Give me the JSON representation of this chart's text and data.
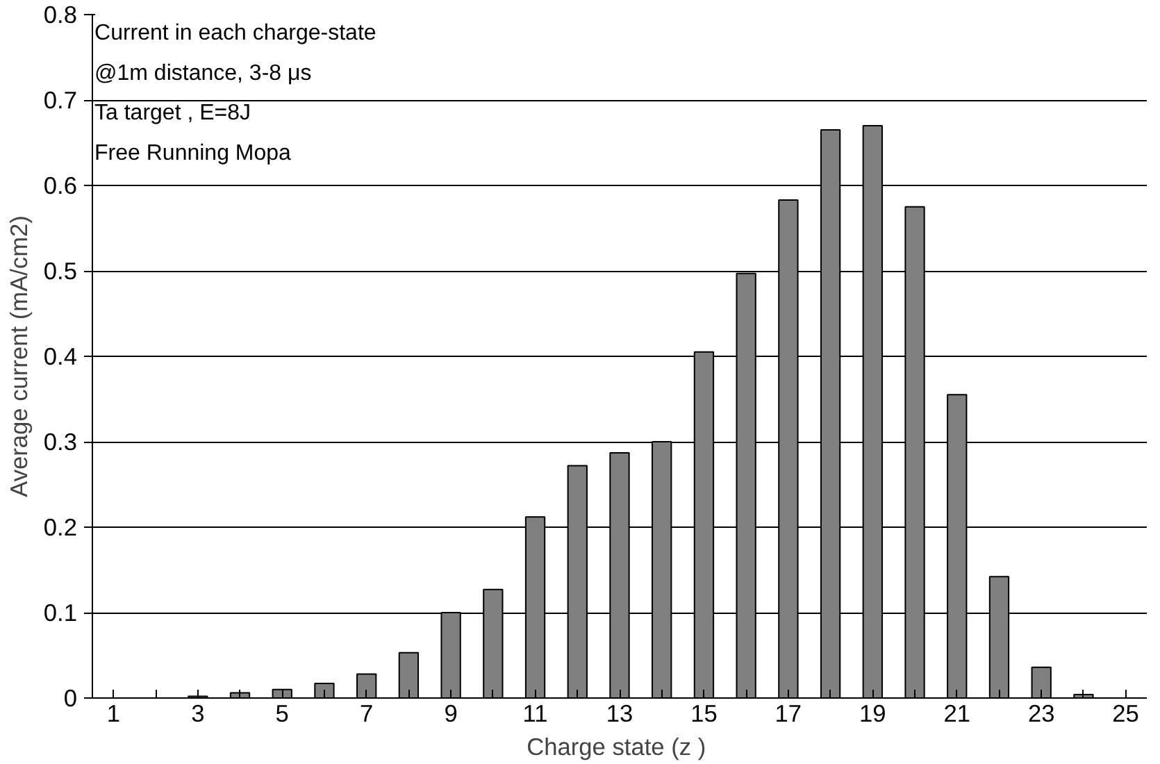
{
  "chart_data": {
    "type": "bar",
    "xlabel": "Charge state (z  )",
    "ylabel": "Average current (mA/cm2)",
    "x": [
      3,
      4,
      5,
      6,
      7,
      8,
      9,
      10,
      11,
      12,
      13,
      14,
      15,
      16,
      17,
      18,
      19,
      20,
      21,
      22,
      23,
      24
    ],
    "xlim": [
      0.5,
      25.5
    ],
    "xticks": [
      1,
      3,
      5,
      7,
      9,
      11,
      13,
      15,
      17,
      19,
      21,
      23,
      25
    ],
    "values": [
      0.002,
      0.006,
      0.01,
      0.017,
      0.028,
      0.053,
      0.1,
      0.127,
      0.212,
      0.272,
      0.287,
      0.3,
      0.405,
      0.497,
      0.583,
      0.665,
      0.67,
      0.575,
      0.355,
      0.142,
      0.036,
      0.004
    ],
    "color": "#808080",
    "ylim": [
      0,
      0.8
    ],
    "yticks": [
      0,
      0.1,
      0.2,
      0.3,
      0.4,
      0.5,
      0.6,
      0.7,
      0.8
    ],
    "grid": "y",
    "annotations": [
      "Current in each charge-state",
      "@1m distance, 3-8  μs",
      "Ta target , E=8J",
      "Free Running Mopa"
    ]
  }
}
